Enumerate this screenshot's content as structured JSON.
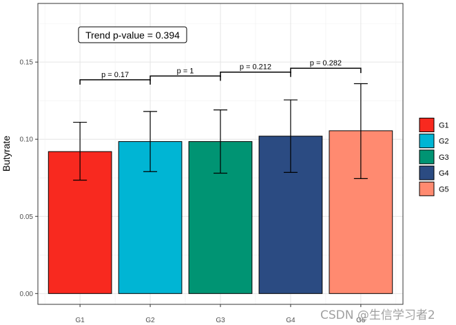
{
  "chart_data": {
    "type": "bar",
    "ylabel": "Butyrate",
    "xlabel": "",
    "ylim": [
      -0.007,
      0.188
    ],
    "y_ticks": [
      0.0,
      0.05,
      0.1,
      0.15
    ],
    "y_tick_labels": [
      "0.00",
      "0.05",
      "0.10",
      "0.15"
    ],
    "categories": [
      "G1",
      "G2",
      "G3",
      "G4",
      "G5"
    ],
    "values": [
      0.092,
      0.0985,
      0.0985,
      0.102,
      0.1055
    ],
    "error_low": [
      0.0735,
      0.079,
      0.078,
      0.0785,
      0.0745
    ],
    "error_high": [
      0.111,
      0.118,
      0.119,
      0.1255,
      0.136
    ],
    "colors": [
      "#F8291F",
      "#00B5D4",
      "#009473",
      "#2B4B82",
      "#FF8A70"
    ],
    "legend": {
      "position": "right",
      "entries": [
        "G1",
        "G2",
        "G3",
        "G4",
        "G5"
      ]
    },
    "annotation": "Trend p-value = 0.394",
    "comparisons": [
      {
        "groups": [
          "G1",
          "G2"
        ],
        "label": "p = 0.17",
        "y": 0.1385
      },
      {
        "groups": [
          "G2",
          "G3"
        ],
        "label": "p = 1",
        "y": 0.141
      },
      {
        "groups": [
          "G3",
          "G4"
        ],
        "label": "p = 0.212",
        "y": 0.1435
      },
      {
        "groups": [
          "G4",
          "G5"
        ],
        "label": "p = 0.282",
        "y": 0.146
      }
    ],
    "grid": true
  },
  "watermark": "CSDN @生信学习者2"
}
